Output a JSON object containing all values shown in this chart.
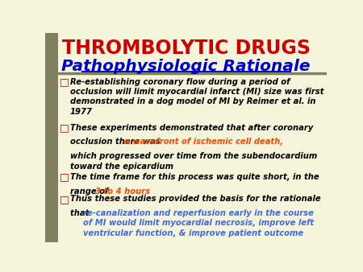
{
  "title1": "THROMBOLYTIC DRUGS",
  "title2": "Pathophysiologic Rationale",
  "title1_color": "#CC0000",
  "title2_color": "#0000CC",
  "background_color": "#F5F5DC",
  "left_bar_color": "#808060",
  "bullet_color": "#CC0000",
  "bullet_char": "□",
  "bullet2_red": "a wavefront of ischemic cell death,",
  "bullet2_red_color": "#FF4500",
  "bullet3_red": "3 to 4 hours",
  "bullet3_red_color": "#FF4500",
  "bullet4_blue": "re-canalization and reperfusion early in the course of MI would limit myocardial necrosis, improve left ventricular function, & improve patient outcome",
  "bullet4_blue_color": "#4169E1",
  "separator_color": "#808060",
  "figsize": [
    4.5,
    3.38
  ],
  "dpi": 100
}
